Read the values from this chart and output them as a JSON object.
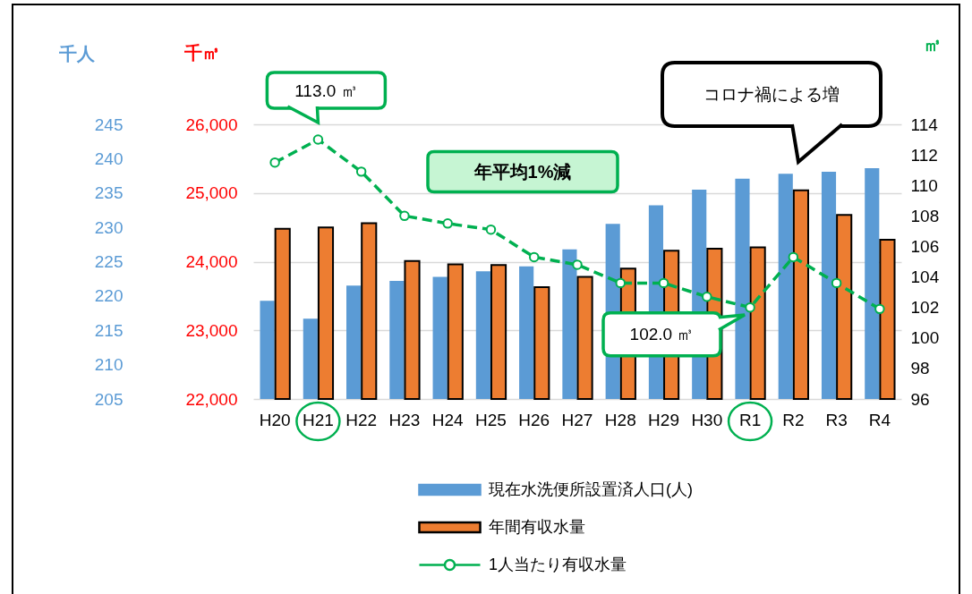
{
  "chart_data": {
    "type": "bar",
    "categories": [
      "H20",
      "H21",
      "H22",
      "H23",
      "H24",
      "H25",
      "H26",
      "H27",
      "H28",
      "H29",
      "H30",
      "R1",
      "R2",
      "R3",
      "R4"
    ],
    "series": [
      {
        "name": "現在水洗便所設置済人口(人)",
        "color": "#5b9bd5",
        "axis": "y3",
        "values": [
          219.3,
          216.7,
          221.5,
          222.2,
          222.8,
          223.6,
          224.3,
          226.8,
          230.5,
          233.2,
          235.5,
          237.1,
          237.8,
          238.1,
          238.6
        ]
      },
      {
        "name": "年間有収水量",
        "color": "#ed7d31",
        "values": [
          24480,
          24500,
          24560,
          24010,
          23960,
          23950,
          23630,
          23780,
          23900,
          24160,
          24190,
          24210,
          25040,
          24680,
          24320
        ]
      },
      {
        "name": "1人当たり有収水量",
        "type": "line",
        "color": "#00b050",
        "axis": "y2",
        "marker": "circle",
        "line_style": "dashed",
        "values": [
          111.5,
          113.0,
          110.9,
          108.0,
          107.5,
          107.1,
          105.3,
          104.8,
          103.6,
          103.6,
          102.7,
          102.0,
          105.3,
          103.6,
          101.9
        ]
      }
    ],
    "ylabel": "千㎥",
    "y2label": "㎥",
    "y3label": "千人",
    "ylim": [
      22000,
      26000
    ],
    "yticks": [
      {
        "value": 22000,
        "label": "22,000"
      },
      {
        "value": 23000,
        "label": "23,000"
      },
      {
        "value": 24000,
        "label": "24,000"
      },
      {
        "value": 25000,
        "label": "25,000"
      },
      {
        "value": 26000,
        "label": "26,000"
      }
    ],
    "y2lim": [
      96,
      114
    ],
    "y2ticks": [
      96,
      98,
      100,
      102,
      104,
      106,
      108,
      110,
      112,
      114
    ],
    "y3lim": [
      205,
      245
    ],
    "y3ticks": [
      205,
      210,
      215,
      220,
      225,
      230,
      235,
      240,
      245
    ],
    "grid": "y",
    "legend": "bottom",
    "annotations": [
      "113.0 ㎥",
      "年平均1%減",
      "コロナ禍による増",
      "102.0 ㎥"
    ]
  }
}
